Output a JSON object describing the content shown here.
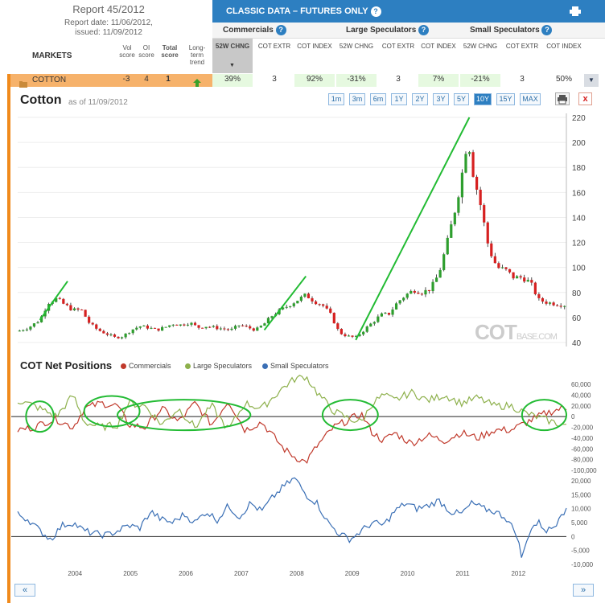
{
  "report": {
    "title": "Report 45/2012",
    "date": "Report date: 11/06/2012,",
    "issued": "issued: 11/09/2012"
  },
  "markets_label": "MARKETS",
  "score_headers": [
    "Vol score",
    "OI score",
    "Total score",
    "Long-term trend"
  ],
  "panel": {
    "title": "CLASSIC DATA – FUTURES ONLY",
    "groups": [
      "Commercials",
      "Large Speculators",
      "Small Speculators"
    ],
    "columns": [
      "52W CHNG",
      "COT EXTR",
      "COT INDEX",
      "52W CHNG",
      "COT EXTR",
      "COT INDEX",
      "52W CHNG",
      "COT EXTR",
      "COT INDEX"
    ]
  },
  "row": {
    "name": "COTTON",
    "vol": "-3",
    "oi": "4",
    "total": "1",
    "values": [
      "39%",
      "3",
      "92%",
      "-31%",
      "3",
      "7%",
      "-21%",
      "3",
      "50%"
    ]
  },
  "chart_header": {
    "title": "Cotton",
    "as_of": "as of 11/09/2012",
    "ranges": [
      "1m",
      "3m",
      "6m",
      "1Y",
      "2Y",
      "3Y",
      "5Y",
      "10Y",
      "15Y",
      "MAX"
    ],
    "active_range": "10Y"
  },
  "cot_section": {
    "title": "COT Net Positions",
    "legend": [
      "Commercials",
      "Large Speculators",
      "Small Speculators"
    ]
  },
  "watermark": {
    "main": "COT",
    "sub": "BASE.COM"
  },
  "nav": {
    "prev": "«",
    "next": "»"
  },
  "colors": {
    "commercials": "#c0392b",
    "large": "#8db04b",
    "small": "#3a6fb5",
    "up": "#2e9e2e",
    "down": "#d62020",
    "accent": "#2d7fc1"
  },
  "chart_data": [
    {
      "type": "candlestick",
      "title": "Cotton",
      "ylim": [
        40,
        220
      ],
      "yticks": [
        40,
        60,
        80,
        100,
        120,
        140,
        160,
        180,
        200,
        220
      ],
      "xticks": [
        "2004",
        "2005",
        "2006",
        "2007",
        "2008",
        "2009",
        "2010",
        "2011",
        "2012"
      ],
      "x_range": [
        2003.0,
        2012.9
      ],
      "series_close": [
        [
          2003.0,
          49
        ],
        [
          2003.2,
          52
        ],
        [
          2003.4,
          58
        ],
        [
          2003.55,
          72
        ],
        [
          2003.7,
          75
        ],
        [
          2003.85,
          70
        ],
        [
          2004.0,
          66
        ],
        [
          2004.15,
          66
        ],
        [
          2004.3,
          55
        ],
        [
          2004.45,
          50
        ],
        [
          2004.6,
          47
        ],
        [
          2004.75,
          44
        ],
        [
          2004.9,
          45
        ],
        [
          2005.05,
          50
        ],
        [
          2005.2,
          53
        ],
        [
          2005.35,
          52
        ],
        [
          2005.5,
          50
        ],
        [
          2005.65,
          52
        ],
        [
          2005.8,
          55
        ],
        [
          2005.95,
          54
        ],
        [
          2006.1,
          56
        ],
        [
          2006.25,
          52
        ],
        [
          2006.4,
          53
        ],
        [
          2006.55,
          52
        ],
        [
          2006.7,
          51
        ],
        [
          2006.85,
          50
        ],
        [
          2007.0,
          54
        ],
        [
          2007.15,
          52
        ],
        [
          2007.3,
          50
        ],
        [
          2007.45,
          55
        ],
        [
          2007.6,
          62
        ],
        [
          2007.75,
          66
        ],
        [
          2007.9,
          70
        ],
        [
          2008.05,
          74
        ],
        [
          2008.2,
          78
        ],
        [
          2008.35,
          73
        ],
        [
          2008.5,
          70
        ],
        [
          2008.65,
          62
        ],
        [
          2008.8,
          48
        ],
        [
          2008.95,
          45
        ],
        [
          2009.1,
          44
        ],
        [
          2009.25,
          50
        ],
        [
          2009.4,
          56
        ],
        [
          2009.55,
          62
        ],
        [
          2009.7,
          63
        ],
        [
          2009.85,
          72
        ],
        [
          2010.0,
          78
        ],
        [
          2010.15,
          82
        ],
        [
          2010.3,
          80
        ],
        [
          2010.45,
          83
        ],
        [
          2010.6,
          95
        ],
        [
          2010.75,
          120
        ],
        [
          2010.9,
          148
        ],
        [
          2011.0,
          170
        ],
        [
          2011.12,
          205
        ],
        [
          2011.22,
          175
        ],
        [
          2011.35,
          150
        ],
        [
          2011.5,
          115
        ],
        [
          2011.65,
          100
        ],
        [
          2011.8,
          98
        ],
        [
          2011.95,
          92
        ],
        [
          2012.1,
          92
        ],
        [
          2012.25,
          88
        ],
        [
          2012.4,
          74
        ],
        [
          2012.55,
          72
        ],
        [
          2012.7,
          71
        ],
        [
          2012.85,
          70
        ]
      ]
    },
    {
      "type": "line",
      "title": "COT Net Positions",
      "ylim": [
        -100000,
        60000
      ],
      "yticks": [
        60000,
        40000,
        20000,
        0,
        -20000,
        -40000,
        -60000,
        -80000,
        -100000
      ],
      "series": [
        {
          "name": "Commercials",
          "values": [
            [
              2003.0,
              -25000
            ],
            [
              2003.3,
              -20000
            ],
            [
              2003.5,
              -10000
            ],
            [
              2003.7,
              -5000
            ],
            [
              2004.0,
              -20000
            ],
            [
              2004.2,
              15000
            ],
            [
              2004.5,
              25000
            ],
            [
              2004.8,
              20000
            ],
            [
              2005.0,
              -15000
            ],
            [
              2005.3,
              -20000
            ],
            [
              2005.6,
              15000
            ],
            [
              2005.9,
              -10000
            ],
            [
              2006.2,
              25000
            ],
            [
              2006.5,
              -15000
            ],
            [
              2006.8,
              30000
            ],
            [
              2007.1,
              -25000
            ],
            [
              2007.4,
              -10000
            ],
            [
              2007.6,
              -35000
            ],
            [
              2007.8,
              -60000
            ],
            [
              2008.0,
              -75000
            ],
            [
              2008.2,
              -85000
            ],
            [
              2008.4,
              -55000
            ],
            [
              2008.7,
              -20000
            ],
            [
              2009.0,
              -5000
            ],
            [
              2009.2,
              5000
            ],
            [
              2009.4,
              -30000
            ],
            [
              2009.6,
              -45000
            ],
            [
              2009.8,
              -30000
            ],
            [
              2010.1,
              -50000
            ],
            [
              2010.4,
              -35000
            ],
            [
              2010.7,
              -45000
            ],
            [
              2011.0,
              -30000
            ],
            [
              2011.3,
              -40000
            ],
            [
              2011.6,
              -25000
            ],
            [
              2011.9,
              -25000
            ],
            [
              2012.2,
              -10000
            ],
            [
              2012.5,
              5000
            ],
            [
              2012.8,
              15000
            ]
          ]
        },
        {
          "name": "Large Speculators",
          "values": [
            [
              2003.0,
              30000
            ],
            [
              2003.3,
              20000
            ],
            [
              2003.5,
              10000
            ],
            [
              2003.7,
              0
            ],
            [
              2004.0,
              40000
            ],
            [
              2004.2,
              -10000
            ],
            [
              2004.5,
              -20000
            ],
            [
              2004.8,
              -15000
            ],
            [
              2005.0,
              25000
            ],
            [
              2005.3,
              20000
            ],
            [
              2005.6,
              -15000
            ],
            [
              2005.9,
              15000
            ],
            [
              2006.2,
              -20000
            ],
            [
              2006.5,
              20000
            ],
            [
              2006.8,
              -25000
            ],
            [
              2007.1,
              25000
            ],
            [
              2007.4,
              15000
            ],
            [
              2007.6,
              35000
            ],
            [
              2007.8,
              55000
            ],
            [
              2008.0,
              70000
            ],
            [
              2008.2,
              75000
            ],
            [
              2008.4,
              45000
            ],
            [
              2008.7,
              10000
            ],
            [
              2009.0,
              -5000
            ],
            [
              2009.2,
              -10000
            ],
            [
              2009.4,
              25000
            ],
            [
              2009.6,
              40000
            ],
            [
              2009.8,
              30000
            ],
            [
              2010.1,
              45000
            ],
            [
              2010.4,
              30000
            ],
            [
              2010.7,
              40000
            ],
            [
              2011.0,
              25000
            ],
            [
              2011.3,
              35000
            ],
            [
              2011.6,
              20000
            ],
            [
              2011.9,
              20000
            ],
            [
              2012.2,
              5000
            ],
            [
              2012.5,
              -5000
            ],
            [
              2012.8,
              -15000
            ]
          ]
        }
      ]
    },
    {
      "type": "line",
      "ylim": [
        -10000,
        20000
      ],
      "yticks": [
        20000,
        15000,
        10000,
        5000,
        0,
        -5000,
        -10000
      ],
      "series": [
        {
          "name": "Small Speculators",
          "values": [
            [
              2003.0,
              8000
            ],
            [
              2003.2,
              6000
            ],
            [
              2003.4,
              2000
            ],
            [
              2003.6,
              -1000
            ],
            [
              2003.8,
              4000
            ],
            [
              2004.0,
              5000
            ],
            [
              2004.2,
              2000
            ],
            [
              2004.4,
              1000
            ],
            [
              2004.6,
              500
            ],
            [
              2004.8,
              2000
            ],
            [
              2005.0,
              4000
            ],
            [
              2005.2,
              3000
            ],
            [
              2005.4,
              9000
            ],
            [
              2005.6,
              6000
            ],
            [
              2005.8,
              5000
            ],
            [
              2006.0,
              8000
            ],
            [
              2006.2,
              5000
            ],
            [
              2006.4,
              9000
            ],
            [
              2006.6,
              6000
            ],
            [
              2006.8,
              11000
            ],
            [
              2007.0,
              7000
            ],
            [
              2007.2,
              12000
            ],
            [
              2007.4,
              9000
            ],
            [
              2007.6,
              14000
            ],
            [
              2007.8,
              18000
            ],
            [
              2008.0,
              21000
            ],
            [
              2008.2,
              15000
            ],
            [
              2008.4,
              12000
            ],
            [
              2008.6,
              5000
            ],
            [
              2008.8,
              1000
            ],
            [
              2009.0,
              -1000
            ],
            [
              2009.2,
              2000
            ],
            [
              2009.4,
              5000
            ],
            [
              2009.6,
              4000
            ],
            [
              2009.8,
              9000
            ],
            [
              2010.0,
              12000
            ],
            [
              2010.2,
              10000
            ],
            [
              2010.4,
              11000
            ],
            [
              2010.6,
              13000
            ],
            [
              2010.8,
              9000
            ],
            [
              2011.0,
              8000
            ],
            [
              2011.2,
              12000
            ],
            [
              2011.4,
              10000
            ],
            [
              2011.6,
              9000
            ],
            [
              2011.8,
              7000
            ],
            [
              2012.0,
              1000
            ],
            [
              2012.1,
              -8000
            ],
            [
              2012.25,
              3000
            ],
            [
              2012.4,
              5000
            ],
            [
              2012.55,
              2000
            ],
            [
              2012.7,
              4000
            ],
            [
              2012.8,
              9000
            ]
          ]
        }
      ]
    }
  ]
}
